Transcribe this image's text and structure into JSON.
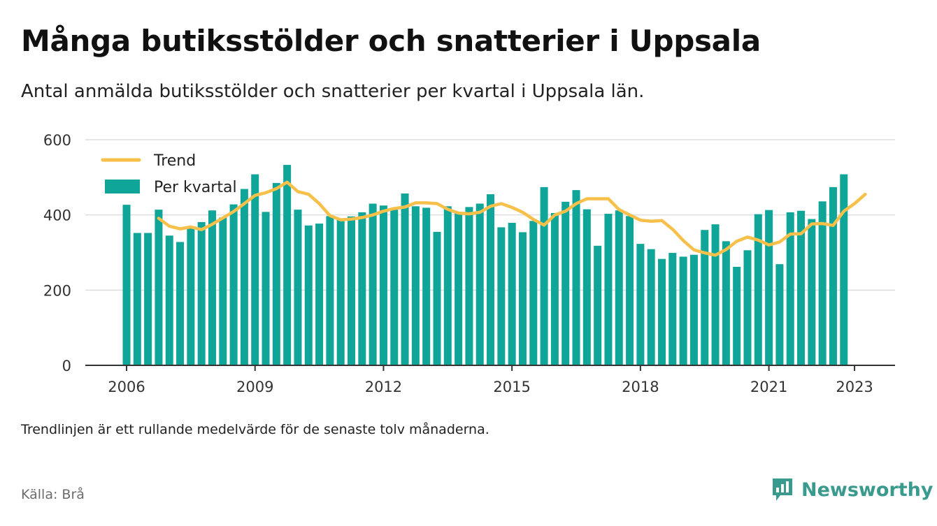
{
  "title": "Många butiksstölder och snatterier i Uppsala",
  "subtitle": "Antal anmälda butiksstölder och snatterier per kvartal i Uppsala län.",
  "note": "Trendlinjen är ett rullande medelvärde för de senaste tolv månaderna.",
  "source": "Källa: Brå",
  "brand": {
    "name": "Newsworthy",
    "icon": "newsworthy-logo-icon"
  },
  "colors": {
    "bar": "#0fa699",
    "trend": "#f7c04a",
    "axis": "#333333",
    "grid": "#dddddd",
    "brand": "#3a9a8e"
  },
  "chart_data": {
    "type": "bar",
    "legend": {
      "placement": "top-left",
      "entries": [
        "Trend",
        "Per kvartal"
      ]
    },
    "ylim": [
      0,
      600
    ],
    "yticks": [
      0,
      200,
      400,
      600
    ],
    "xticks": [
      "2006",
      "2009",
      "2012",
      "2015",
      "2018",
      "2021",
      "2023"
    ],
    "grid": true,
    "x_start": {
      "year": 2006,
      "quarter": 1
    },
    "series": [
      {
        "name": "Per kvartal",
        "type": "bar",
        "values": [
          427,
          352,
          352,
          414,
          345,
          328,
          365,
          381,
          412,
          393,
          428,
          469,
          508,
          408,
          485,
          533,
          414,
          372,
          377,
          397,
          387,
          396,
          407,
          430,
          425,
          414,
          457,
          423,
          419,
          355,
          423,
          406,
          421,
          430,
          455,
          367,
          379,
          354,
          384,
          474,
          405,
          435,
          466,
          415,
          318,
          403,
          412,
          397,
          323,
          309,
          283,
          299,
          289,
          294,
          360,
          375,
          330,
          262,
          306,
          402,
          413,
          269,
          407,
          411,
          389,
          436,
          474,
          508
        ]
      },
      {
        "name": "Trend",
        "type": "line",
        "start_index": 3,
        "values": [
          391,
          370,
          363,
          368,
          361,
          375,
          392,
          409,
          430,
          452,
          459,
          470,
          487,
          462,
          455,
          430,
          398,
          387,
          389,
          393,
          400,
          410,
          417,
          421,
          432,
          432,
          430,
          415,
          405,
          403,
          407,
          423,
          430,
          420,
          407,
          388,
          373,
          400,
          410,
          430,
          443,
          443,
          443,
          414,
          400,
          386,
          383,
          385,
          362,
          332,
          307,
          299,
          293,
          308,
          330,
          341,
          333,
          320,
          328,
          349,
          350,
          376,
          377,
          372,
          410,
          430,
          455
        ]
      }
    ]
  }
}
